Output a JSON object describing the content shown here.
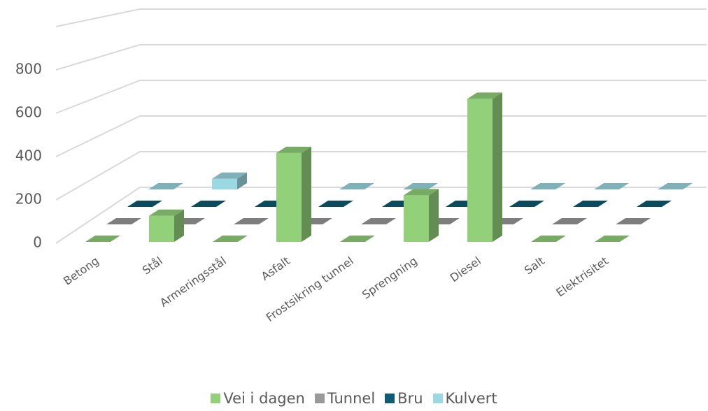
{
  "chart_data": {
    "type": "bar3d",
    "categories": [
      "Betong",
      "Stål",
      "Armeringsstål",
      "Asfalt",
      "Frostsikring tunnel",
      "Sprengning",
      "Diesel",
      "Salt",
      "Elektrisitet"
    ],
    "series": [
      {
        "name": "Vei i dagen",
        "color": "#92d07a",
        "values": [
          0,
          120,
          0,
          410,
          0,
          215,
          660,
          0,
          0
        ]
      },
      {
        "name": "Tunnel",
        "color": "#9a9a9a",
        "values": [
          0,
          0,
          0,
          0,
          0,
          0,
          0,
          0,
          0
        ]
      },
      {
        "name": "Bru",
        "color": "#0f5b73",
        "values": [
          0,
          0,
          0,
          0,
          0,
          0,
          0,
          0,
          0
        ]
      },
      {
        "name": "Kulvert",
        "color": "#9bd8e1",
        "values": [
          0,
          60,
          0,
          0,
          0,
          0,
          0,
          0,
          0
        ]
      }
    ],
    "ylim": [
      0,
      1000
    ],
    "yticks": [
      0,
      200,
      400,
      600,
      800
    ],
    "grid": true,
    "legend": "bottom"
  }
}
